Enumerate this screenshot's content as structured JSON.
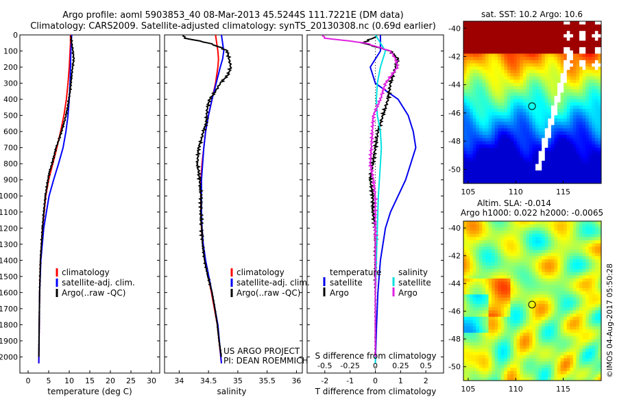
{
  "title_line1": "Argo profile: aoml 5903853_40 08-Mar-2013 45.5244S 111.7221E (DM data)",
  "title_line2": "Climatology: CARS2009. Satellite-adjusted climatology: synTS_20130308.nc (0.69d earlier)",
  "colors": {
    "climatology": "#ff0000",
    "satellite": "#0000ff",
    "argo": "#000000",
    "sat_T": "#0000ee",
    "sat_S": "#00e0e0",
    "argo_S": "#e020e0"
  },
  "chart_data": [
    {
      "type": "line",
      "title": "",
      "xlabel": "temperature (deg C)",
      "ylabel": "",
      "xlim": [
        -2,
        32
      ],
      "ylim": [
        2100,
        0
      ],
      "x_ticks": [
        0,
        5,
        10,
        15,
        20,
        25,
        30
      ],
      "y_ticks": [
        0,
        100,
        200,
        300,
        400,
        500,
        600,
        700,
        800,
        900,
        1000,
        1100,
        1200,
        1300,
        1400,
        1500,
        1600,
        1700,
        1800,
        1900,
        2000
      ],
      "legend": [
        "climatology",
        "satellite-adj. clim.",
        "Argo(..raw -QC)"
      ],
      "series": [
        {
          "name": "climatology",
          "depth": [
            0,
            50,
            100,
            200,
            300,
            400,
            500,
            600,
            700,
            800,
            900,
            1000,
            1200,
            1400,
            1600,
            1800,
            2040
          ],
          "values": [
            10.3,
            10.3,
            10.2,
            10.0,
            9.7,
            9.3,
            8.7,
            7.9,
            7.0,
            6.0,
            5.0,
            4.3,
            3.5,
            3.0,
            2.8,
            2.7,
            2.6
          ]
        },
        {
          "name": "satellite-adj. clim.",
          "depth": [
            0,
            50,
            100,
            200,
            300,
            400,
            500,
            600,
            700,
            800,
            900,
            1000,
            1200,
            1400,
            1600,
            1800,
            2040
          ],
          "values": [
            10.6,
            10.5,
            10.4,
            10.3,
            10.2,
            10.0,
            9.7,
            9.2,
            8.5,
            7.4,
            6.2,
            5.1,
            3.8,
            3.1,
            2.8,
            2.7,
            2.6
          ]
        },
        {
          "name": "Argo(..raw -QC)",
          "depth": [
            5,
            50,
            100,
            150,
            200,
            250,
            300,
            350,
            400,
            450,
            500,
            550,
            600,
            650,
            700,
            750,
            800,
            850,
            900,
            950,
            1000,
            1100,
            1200,
            1400,
            1600,
            1800,
            2000
          ],
          "values": [
            10.4,
            10.6,
            10.9,
            11.1,
            10.8,
            10.6,
            10.4,
            10.2,
            9.9,
            9.6,
            9.2,
            8.7,
            8.1,
            7.5,
            6.8,
            6.3,
            5.8,
            5.2,
            4.8,
            4.5,
            4.2,
            3.8,
            3.5,
            3.0,
            2.8,
            2.7,
            2.6
          ]
        }
      ]
    },
    {
      "type": "line",
      "xlabel": "salinity",
      "xlim": [
        33.75,
        36.1
      ],
      "ylim": [
        2100,
        0
      ],
      "x_ticks": [
        34,
        34.5,
        35,
        35.5,
        36
      ],
      "legend": [
        "climatology",
        "satellite-adj. clim.",
        "Argo(..raw -QC)"
      ],
      "annotation": [
        "US ARGO PROJECT",
        "PI: DEAN ROEMMICH"
      ],
      "series": [
        {
          "name": "climatology",
          "depth": [
            0,
            50,
            100,
            150,
            200,
            300,
            400,
            500,
            600,
            700,
            800,
            900,
            1000,
            1100,
            1200,
            1300,
            1400,
            1600,
            1800,
            2040
          ],
          "values": [
            34.62,
            34.64,
            34.66,
            34.67,
            34.66,
            34.62,
            34.56,
            34.5,
            34.45,
            34.42,
            34.39,
            34.37,
            34.37,
            34.37,
            34.38,
            34.4,
            34.44,
            34.55,
            34.65,
            34.72
          ]
        },
        {
          "name": "satellite-adj. clim.",
          "depth": [
            0,
            50,
            100,
            150,
            200,
            300,
            400,
            500,
            600,
            700,
            800,
            900,
            1000,
            1100,
            1200,
            1300,
            1400,
            1600,
            1800,
            2040
          ],
          "values": [
            34.72,
            34.74,
            34.76,
            34.74,
            34.7,
            34.63,
            34.56,
            34.5,
            34.45,
            34.42,
            34.4,
            34.38,
            34.38,
            34.38,
            34.39,
            34.41,
            34.45,
            34.56,
            34.66,
            34.72
          ]
        },
        {
          "name": "Argo(..raw -QC)",
          "depth": [
            5,
            20,
            50,
            80,
            100,
            150,
            200,
            250,
            300,
            350,
            400,
            450,
            500,
            550,
            600,
            650,
            700,
            750,
            800,
            850,
            900,
            950,
            1000,
            1100,
            1200,
            1300,
            1400,
            1500,
            1600,
            1700,
            1800,
            1900,
            2000
          ],
          "values": [
            34.07,
            34.1,
            34.5,
            34.72,
            34.82,
            34.85,
            34.88,
            34.83,
            34.7,
            34.62,
            34.52,
            34.48,
            34.47,
            34.46,
            34.41,
            34.38,
            34.33,
            34.32,
            34.31,
            34.33,
            34.35,
            34.36,
            34.37,
            34.37,
            34.38,
            34.4,
            34.43,
            34.49,
            34.56,
            34.61,
            34.65,
            34.68,
            34.72
          ]
        }
      ]
    },
    {
      "type": "line",
      "xlabel": "T difference from climatology",
      "xlabel_top": "S difference from climatology",
      "xlim": [
        -2.7,
        2.7
      ],
      "ylim": [
        2100,
        0
      ],
      "x_ticks_T": [
        -2,
        -1,
        0,
        1,
        2
      ],
      "x_ticks_S": [
        -0.5,
        -0.25,
        0,
        0.25,
        0.5
      ],
      "legend_temperature": [
        "temperature",
        "satellite",
        "Argo"
      ],
      "legend_salinity": [
        "salinity",
        "satellite",
        "Argo"
      ],
      "series": [
        {
          "name": "temperature satellite",
          "depth": [
            0,
            100,
            200,
            300,
            400,
            500,
            600,
            700,
            800,
            900,
            1000,
            1100,
            1200,
            1400,
            1600,
            1800,
            2040
          ],
          "values": [
            0.2,
            0.2,
            -0.2,
            0.0,
            0.9,
            1.3,
            1.5,
            1.6,
            1.4,
            1.2,
            0.9,
            0.6,
            0.4,
            0.2,
            0.1,
            0.05,
            0.0
          ]
        },
        {
          "name": "temperature Argo",
          "depth": [
            5,
            50,
            100,
            150,
            200,
            300,
            400,
            500,
            600,
            700,
            800,
            900,
            1000,
            1100,
            1200,
            1300,
            1400,
            1600,
            1800,
            2000
          ],
          "values": [
            0.1,
            -0.5,
            0.6,
            0.9,
            0.8,
            0.6,
            0.5,
            0.3,
            0.1,
            0.0,
            -0.1,
            -0.2,
            -0.1,
            -0.1,
            0.0,
            0.0,
            0.0,
            0.0,
            0.0,
            0.0
          ]
        },
        {
          "name": "salinity satellite",
          "depth": [
            0,
            50,
            100,
            200,
            300,
            400,
            500,
            600,
            700,
            800,
            900,
            1000,
            1200,
            1400,
            1600,
            1800,
            2040
          ],
          "values": [
            0.0,
            0.05,
            0.1,
            0.05,
            0.02,
            0.01,
            0.02,
            0.05,
            0.06,
            0.05,
            0.04,
            0.03,
            0.02,
            0.01,
            0.0,
            0.0,
            0.0
          ]
        },
        {
          "name": "salinity Argo",
          "depth": [
            5,
            20,
            50,
            100,
            150,
            200,
            300,
            400,
            500,
            600,
            700,
            800,
            900,
            1000,
            1200,
            1400,
            1600,
            1800,
            2000
          ],
          "values": [
            -0.52,
            -0.5,
            -0.1,
            0.15,
            0.2,
            0.22,
            0.1,
            0.05,
            -0.02,
            -0.03,
            -0.04,
            -0.05,
            -0.02,
            0.0,
            0.0,
            0.0,
            0.0,
            0.0,
            0.0
          ]
        }
      ]
    },
    {
      "type": "heatmap",
      "title": "sat. SST: 10.2 Argo: 10.6",
      "xlim": [
        104.5,
        119
      ],
      "ylim": [
        -51,
        -39.5
      ],
      "x_ticks": [
        105,
        110,
        115
      ],
      "y_ticks": [
        -40,
        -42,
        -44,
        -46,
        -48,
        -50
      ],
      "marker": {
        "lon": 111.72,
        "lat": -45.52
      }
    },
    {
      "type": "heatmap",
      "title_line1": "Altim. SLA: -0.014",
      "title_line2": "Argo h1000: 0.022 h2000: -0.0065",
      "xlim": [
        104.5,
        119
      ],
      "ylim": [
        -51,
        -39.5
      ],
      "x_ticks": [
        105,
        110,
        115
      ],
      "y_ticks": [
        -40,
        -42,
        -44,
        -46,
        -48,
        -50
      ],
      "marker": {
        "lon": 111.72,
        "lat": -45.52
      }
    }
  ],
  "credit": "©IMOS 04-Aug-2017 05:50:28"
}
